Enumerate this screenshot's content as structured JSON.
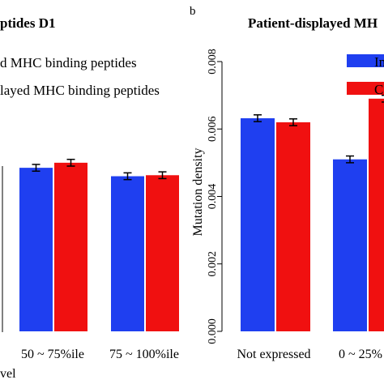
{
  "left_panel": {
    "title_fragment": "ptides D1",
    "legend": [
      "d MHC binding peptides",
      "layed MHC binding peptides"
    ],
    "xlabel_fragment": "vel"
  },
  "right_panel": {
    "panel_label": "b",
    "title_fragment": "Patient-displayed MH",
    "legend": [
      "In",
      "C"
    ]
  },
  "colors": {
    "blue": "#1f3ff0",
    "red": "#f01010"
  },
  "chart_data": [
    {
      "type": "bar",
      "title": "ptides D1",
      "xlabel": "vel",
      "ylabel": "",
      "categories": [
        "50 ~ 75%ile",
        "75 ~ 100%ile"
      ],
      "series": [
        {
          "name": "d MHC binding peptides",
          "values": [
            0.00485,
            0.0046
          ],
          "errors": [
            0.0001,
            0.0001
          ]
        },
        {
          "name": "layed MHC binding peptides",
          "values": [
            0.005,
            0.00463
          ],
          "errors": [
            0.0001,
            0.0001
          ]
        }
      ],
      "ylim": [
        0,
        0.008
      ],
      "grid": false,
      "legend": "top"
    },
    {
      "type": "bar",
      "title": "Patient-displayed MH",
      "xlabel": "",
      "ylabel": "Mutation density",
      "categories": [
        "Not expressed",
        "0 ~ 25%"
      ],
      "series": [
        {
          "name": "In",
          "values": [
            0.00632,
            0.0051
          ],
          "errors": [
            0.0001,
            0.0001
          ]
        },
        {
          "name": "C",
          "values": [
            0.0062,
            0.0069
          ],
          "errors": [
            0.0001,
            0.0001
          ]
        }
      ],
      "yticks": [
        "0.000",
        "0.002",
        "0.004",
        "0.006",
        "0.008"
      ],
      "ylim": [
        0,
        0.008
      ],
      "grid": false,
      "legend": "top-right"
    }
  ]
}
